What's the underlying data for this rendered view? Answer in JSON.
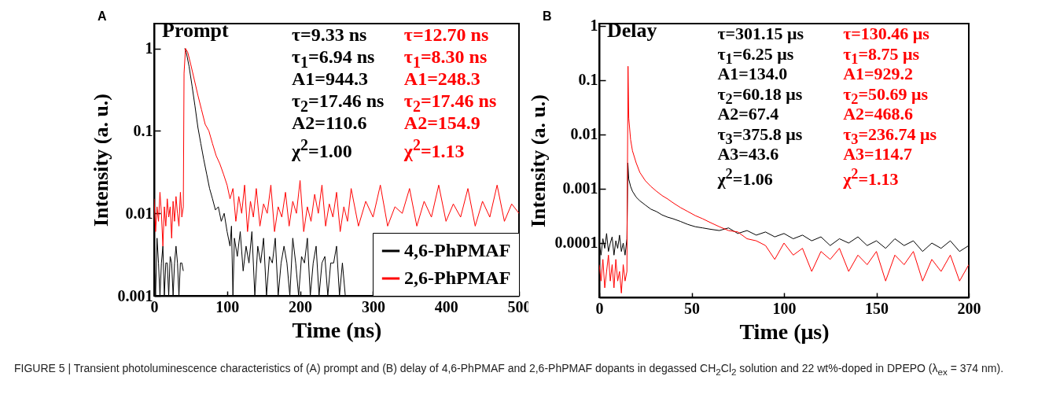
{
  "chart_data": [
    {
      "type": "line",
      "title": "A",
      "xlabel": "Time (ns)",
      "ylabel": "Intensity (a. u.)",
      "log": "y",
      "xlim": [
        0,
        500
      ],
      "xticks": [
        0,
        100,
        200,
        300,
        400,
        500
      ],
      "ylim": [
        0.001,
        2
      ],
      "yticks": [
        0.001,
        0.01,
        0.1,
        1
      ],
      "grid": false,
      "legend": "bottom right",
      "line_style": "solid",
      "series": [
        {
          "name": "4,6-PhPMAF",
          "color": "#000000",
          "x": [
            0,
            2,
            4,
            6,
            8,
            10,
            12,
            14,
            16,
            18,
            20,
            22,
            24,
            26,
            28,
            30,
            32,
            34,
            36,
            38,
            40,
            41,
            42,
            44,
            48,
            52,
            56,
            60,
            64,
            68,
            72,
            76,
            80,
            84,
            88,
            92,
            96,
            100,
            104,
            106,
            108,
            110,
            114,
            118,
            122,
            126,
            130,
            134,
            138,
            142,
            146,
            150,
            154,
            158,
            162,
            166,
            170,
            174,
            178,
            182,
            186,
            190,
            194,
            198,
            202,
            206,
            210,
            214,
            218,
            222,
            226,
            230,
            234,
            238,
            242,
            246,
            250,
            254,
            258,
            262
          ],
          "values": [
            0.0025,
            0.001,
            0.005,
            0.0025,
            0.001,
            0.0025,
            0.004,
            0.001,
            0.0025,
            0.0025,
            0.001,
            0.003,
            0.0025,
            0.001,
            0.0025,
            0.004,
            0.0025,
            0.001,
            0.0025,
            0.0025,
            0.002,
            null,
            1,
            0.9,
            0.6,
            0.35,
            0.2,
            0.11,
            0.07,
            0.045,
            0.03,
            0.02,
            0.015,
            0.011,
            0.012,
            0.008,
            0.01,
            0.006,
            0.004,
            0.007,
            0.001,
            0.005,
            0.003,
            0.006,
            0.002,
            0.004,
            0.0025,
            0.006,
            0.001,
            0.004,
            0.0025,
            0.005,
            0.001,
            0.003,
            0.0025,
            0.005,
            0.001,
            0.0025,
            0.004,
            0.0025,
            0.001,
            0.005,
            0.0025,
            0.001,
            0.003,
            0.0025,
            0.005,
            0.001,
            0.0025,
            0.004,
            0.001,
            0.0025,
            0.003,
            0.001,
            0.0025,
            0.0025,
            0.004,
            0.001,
            0.0025,
            0.001
          ]
        },
        {
          "name": "2,6-PhPMAF",
          "color": "#ff0000",
          "x": [
            0,
            2,
            4,
            6,
            8,
            10,
            12,
            14,
            16,
            18,
            20,
            22,
            24,
            26,
            28,
            30,
            32,
            34,
            36,
            38,
            40,
            41,
            43,
            46,
            50,
            55,
            60,
            65,
            70,
            75,
            80,
            85,
            90,
            95,
            100,
            104,
            108,
            112,
            116,
            120,
            124,
            128,
            132,
            136,
            140,
            145,
            150,
            155,
            160,
            165,
            170,
            175,
            180,
            185,
            190,
            195,
            200,
            205,
            210,
            215,
            220,
            225,
            230,
            235,
            240,
            245,
            250,
            255,
            260,
            265,
            270,
            280,
            290,
            300,
            310,
            320,
            330,
            340,
            350,
            360,
            370,
            380,
            390,
            400,
            410,
            420,
            430,
            440,
            450,
            460,
            470,
            480,
            490,
            500
          ],
          "values": [
            0.015,
            0.006,
            0.012,
            0.008,
            0.018,
            0.01,
            0.004,
            0.012,
            0.007,
            0.015,
            0.009,
            0.012,
            0.005,
            0.014,
            0.008,
            0.016,
            0.01,
            0.007,
            0.018,
            0.009,
            0.012,
            0.5,
            1,
            0.9,
            0.65,
            0.42,
            0.27,
            0.18,
            0.12,
            0.1,
            0.07,
            0.05,
            0.04,
            0.03,
            0.022,
            0.015,
            0.02,
            0.008,
            0.016,
            0.01,
            0.022,
            0.006,
            0.014,
            0.009,
            0.02,
            0.007,
            0.013,
            0.01,
            0.022,
            0.006,
            0.012,
            0.009,
            0.018,
            0.007,
            0.014,
            0.01,
            0.025,
            0.006,
            0.012,
            0.008,
            0.017,
            0.01,
            0.022,
            0.007,
            0.013,
            0.009,
            0.018,
            0.006,
            0.012,
            0.008,
            0.02,
            0.007,
            0.014,
            0.009,
            0.022,
            0.007,
            0.012,
            0.01,
            0.02,
            0.007,
            0.014,
            0.009,
            0.022,
            0.008,
            0.013,
            0.009,
            0.02,
            0.007,
            0.014,
            0.009,
            0.022,
            0.008,
            0.013,
            0.01
          ]
        }
      ],
      "annotations": [
        "Prompt",
        "τ=9.33 ns",
        "τ$_{1}$=6.94 ns",
        "A1=944.3",
        "τ$_{2}$=17.46 ns",
        "A2=110.6",
        "χ$^{2}$=1.00",
        "τ=12.70 ns",
        "τ$_{1}$=8.30 ns",
        "A1=248.3",
        "τ$_{2}$=17.46 ns",
        "A2=154.9",
        "χ$^{2}$=1.13"
      ]
    },
    {
      "type": "line",
      "title": "B",
      "xlabel": "Time (μs)",
      "ylabel": "Intensity (a. u.)",
      "log": "y",
      "xlim": [
        0,
        200
      ],
      "xticks": [
        0,
        50,
        100,
        150,
        200
      ],
      "ylim": [
        1e-05,
        1.1
      ],
      "yticks": [
        0.0001,
        0.001,
        0.01,
        0.1,
        1
      ],
      "grid": false,
      "line_style": "solid",
      "series": [
        {
          "color": "#000000",
          "x": [
            0,
            1,
            2,
            3,
            4,
            5,
            6,
            7,
            8,
            9,
            10,
            11,
            12,
            13,
            14,
            15,
            15.5,
            16,
            17,
            18,
            20,
            22,
            25,
            28,
            31,
            34,
            37,
            40,
            44,
            48,
            52,
            56,
            60,
            65,
            70,
            75,
            80,
            85,
            90,
            95,
            100,
            105,
            110,
            115,
            120,
            125,
            130,
            135,
            140,
            145,
            150,
            155,
            160,
            165,
            170,
            175,
            180,
            185,
            190,
            195,
            200
          ],
          "values": [
            0.0001,
            6e-05,
            0.00012,
            8e-05,
            0.00015,
            7e-05,
            0.0001,
            0.00013,
            6e-05,
            0.00011,
            8e-05,
            0.00014,
            7e-05,
            0.0001,
            6e-05,
            0.00012,
            0.003,
            0.0015,
            0.0011,
            0.0009,
            0.0007,
            0.0006,
            0.0005,
            0.00042,
            0.00038,
            0.00033,
            0.0003,
            0.00028,
            0.00025,
            0.00022,
            0.0002,
            0.00019,
            0.00018,
            0.00017,
            0.00019,
            0.00015,
            0.00017,
            0.00014,
            0.00016,
            0.00013,
            0.00015,
            0.00012,
            0.00014,
            0.00011,
            0.00013,
            9e-05,
            0.00012,
            0.0001,
            0.00013,
            9e-05,
            0.00011,
            8e-05,
            0.00012,
            9e-05,
            0.00011,
            7e-05,
            0.0001,
            8e-05,
            0.00011,
            7e-05,
            9e-05
          ]
        },
        {
          "color": "#ff0000",
          "x": [
            0,
            1,
            2,
            3,
            4,
            5,
            6,
            7,
            8,
            9,
            10,
            11,
            12,
            13,
            14,
            15,
            15.6,
            16,
            17,
            18,
            20,
            22,
            25,
            28,
            31,
            34,
            37,
            40,
            44,
            48,
            52,
            56,
            60,
            65,
            70,
            75,
            80,
            85,
            90,
            95,
            100,
            105,
            110,
            115,
            120,
            125,
            130,
            135,
            140,
            145,
            150,
            155,
            160,
            165,
            170,
            175,
            180,
            185,
            190,
            195,
            200
          ],
          "values": [
            4e-05,
            2e-05,
            5e-05,
            1.5e-05,
            3e-05,
            6e-05,
            2e-05,
            4e-05,
            1.5e-05,
            5e-05,
            2e-05,
            3e-05,
            1.2e-05,
            4e-05,
            2e-05,
            3e-05,
            0.18,
            0.02,
            0.008,
            0.005,
            0.003,
            0.002,
            0.0014,
            0.0011,
            0.0009,
            0.00075,
            0.00065,
            0.00055,
            0.00045,
            0.00038,
            0.00032,
            0.00028,
            0.00024,
            0.0002,
            0.00017,
            0.00016,
            0.00012,
            0.00011,
            9e-05,
            5e-05,
            0.0001,
            6e-05,
            8e-05,
            3e-05,
            7e-05,
            5e-05,
            8e-05,
            3e-05,
            6e-05,
            4e-05,
            7e-05,
            2e-05,
            6e-05,
            4e-05,
            7e-05,
            2e-05,
            5e-05,
            3e-05,
            6e-05,
            2e-05,
            4e-05
          ]
        }
      ],
      "annotations": [
        "Delay",
        "τ=301.15 μs",
        "τ$_{1}$=6.25 μs",
        "A1=134.0",
        "τ$_{2}$=60.18 μs",
        "A2=67.4",
        "τ$_{3}$=375.8 μs",
        "A3=43.6",
        "χ$^{2}$=1.06",
        "τ=130.46 μs",
        "τ$_{1}$=8.75 μs",
        "A1=929.2",
        "τ$_{2}$=50.69 μs",
        "A2=468.6",
        "τ$_{3}$=236.74 μs",
        "A3=114.7",
        "χ$^{2}$=1.13",
        "FIGURE 5 | Transient photoluminescence characteristics of (A) prompt and (B) delay of 4,6-PhPMAF and 2,6-PhPMAF dopants in degassed CH$_{2}$Cl$_{2}$ solution and 22 wt%-doped in DPEPO (λ$_{ex}$ = 374 nm)."
      ]
    }
  ]
}
